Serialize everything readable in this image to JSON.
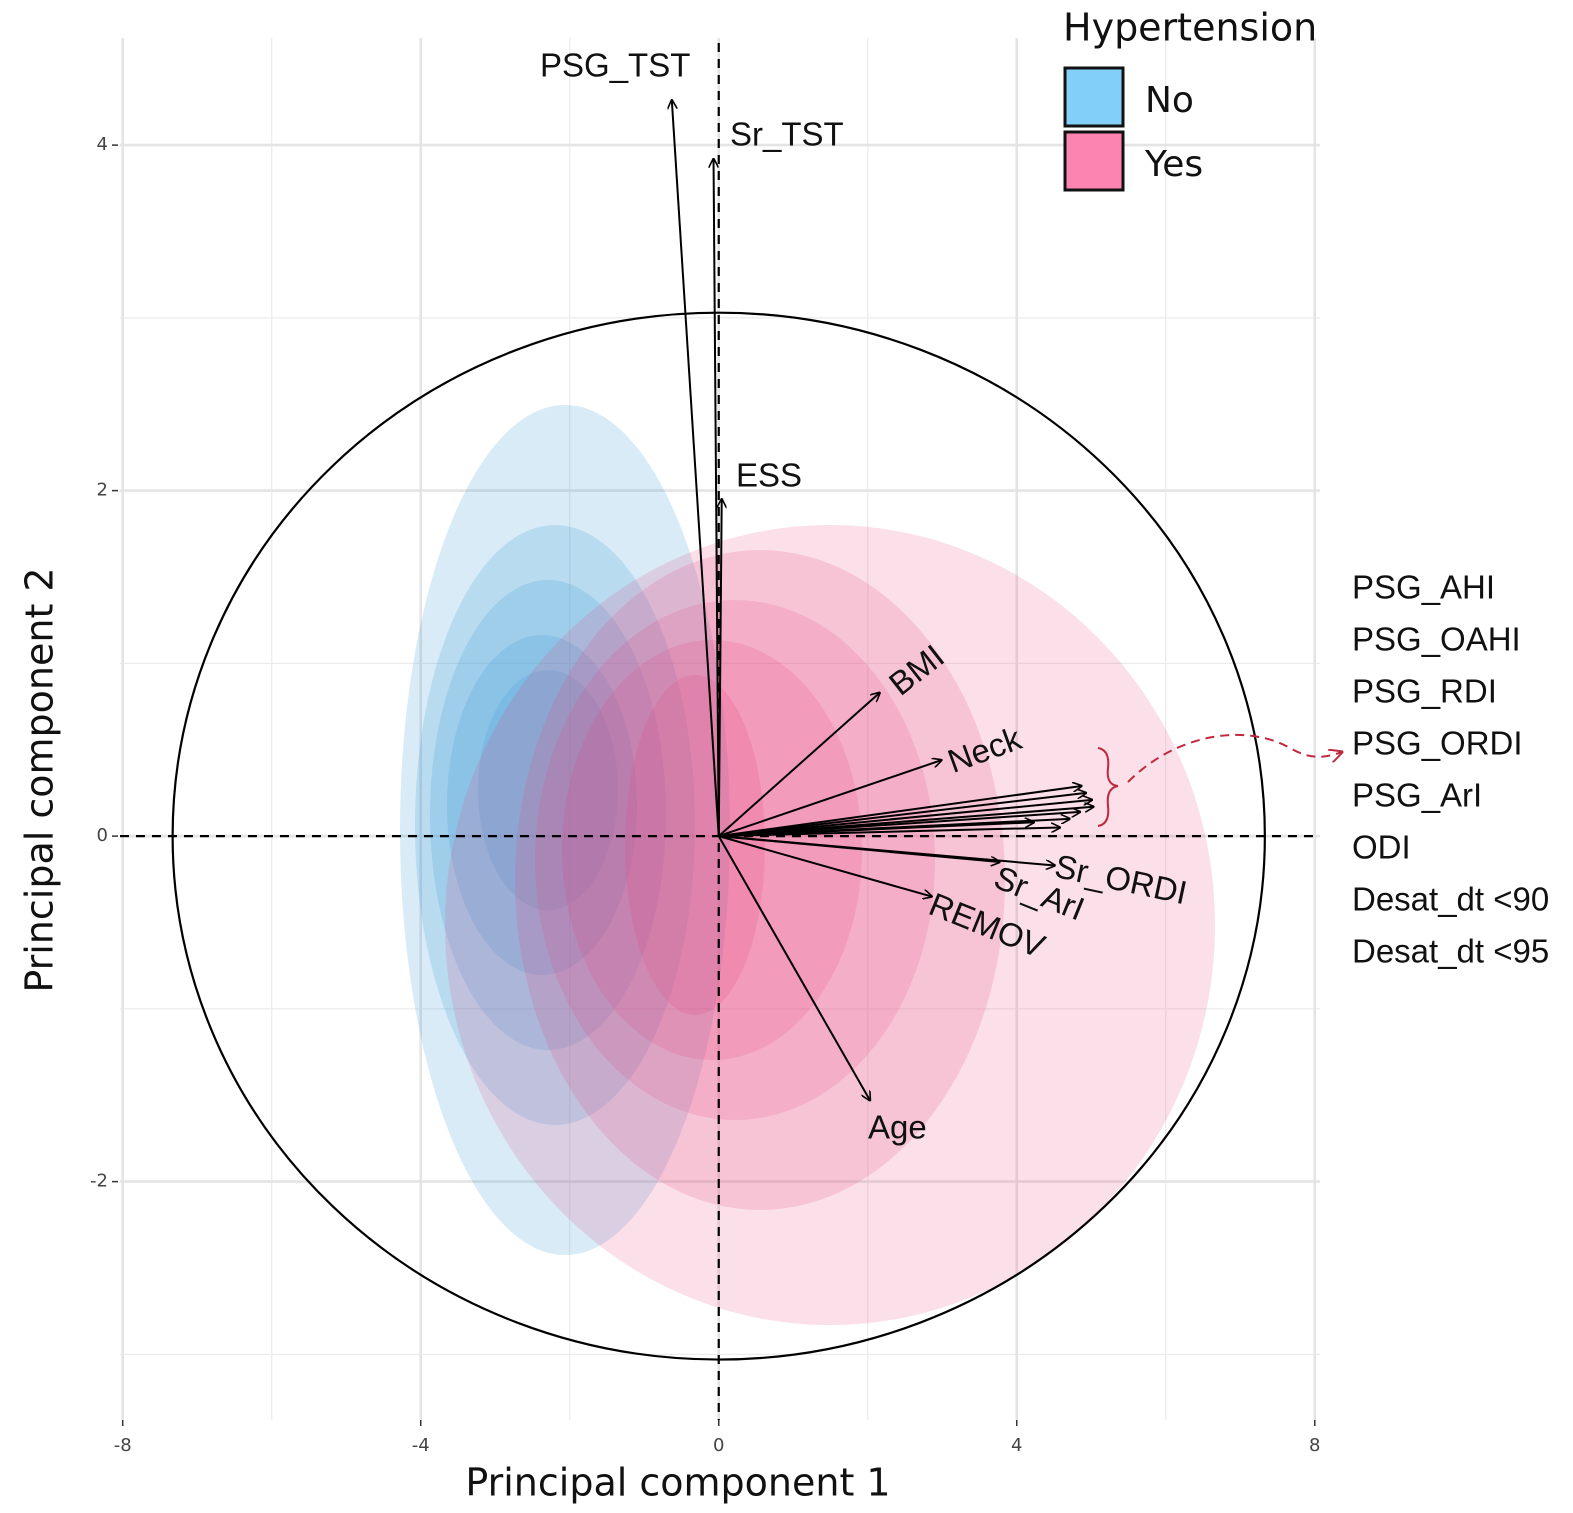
{
  "chart_data": {
    "type": "biplot",
    "xlabel": "Principal component 1",
    "ylabel": "Principal component 2",
    "xlim": [
      -9.11,
      8.07
    ],
    "ylim": [
      -3.38,
      4.62
    ],
    "xticks": [
      -8,
      -4,
      0,
      4,
      8
    ],
    "yticks": [
      -2,
      0,
      2,
      4
    ],
    "xminor": [
      -6,
      -2,
      2,
      6
    ],
    "yminor": [
      -3,
      -1,
      1,
      3
    ],
    "grid": true,
    "hline": 0,
    "vline": 0,
    "circle": {
      "rx": 7.33,
      "ry": 3.03
    },
    "legend_title": "Hypertension",
    "legend_position": "top-right",
    "series": [
      {
        "name": "No",
        "color": "#82cffa",
        "density_color": "#3d9ad6"
      },
      {
        "name": "Yes",
        "color": "#fb85b0",
        "density_color": "#e8407a"
      }
    ],
    "loadings": [
      {
        "label": "PSG_TST",
        "x": -0.63,
        "y": 4.26
      },
      {
        "label": "Sr_TST",
        "x": -0.07,
        "y": 3.92
      },
      {
        "label": "ESS",
        "x": 0.04,
        "y": 1.95
      },
      {
        "label": "BMI",
        "x": 2.16,
        "y": 0.83
      },
      {
        "label": "Neck",
        "x": 2.99,
        "y": 0.44
      },
      {
        "label": "Sr_ORDI",
        "x": 4.51,
        "y": -0.17
      },
      {
        "label": "Sr_ArI",
        "x": 3.77,
        "y": -0.15
      },
      {
        "label": "REMOV",
        "x": 2.86,
        "y": -0.35
      },
      {
        "label": "Age",
        "x": 2.03,
        "y": -1.53
      }
    ],
    "group_loadings": [
      {
        "label": "PSG_AHI",
        "x": 4.87,
        "y": 0.29
      },
      {
        "label": "PSG_OAHI",
        "x": 4.93,
        "y": 0.25
      },
      {
        "label": "PSG_RDI",
        "x": 5.01,
        "y": 0.21
      },
      {
        "label": "PSG_ORDI",
        "x": 5.03,
        "y": 0.17
      },
      {
        "label": "PSG_ArI",
        "x": 4.85,
        "y": 0.14
      },
      {
        "label": "ODI",
        "x": 4.71,
        "y": 0.1
      },
      {
        "label": "Desat_dt <90",
        "x": 4.23,
        "y": 0.08
      },
      {
        "label": "Desat_dt <95",
        "x": 4.58,
        "y": 0.05
      }
    ]
  }
}
